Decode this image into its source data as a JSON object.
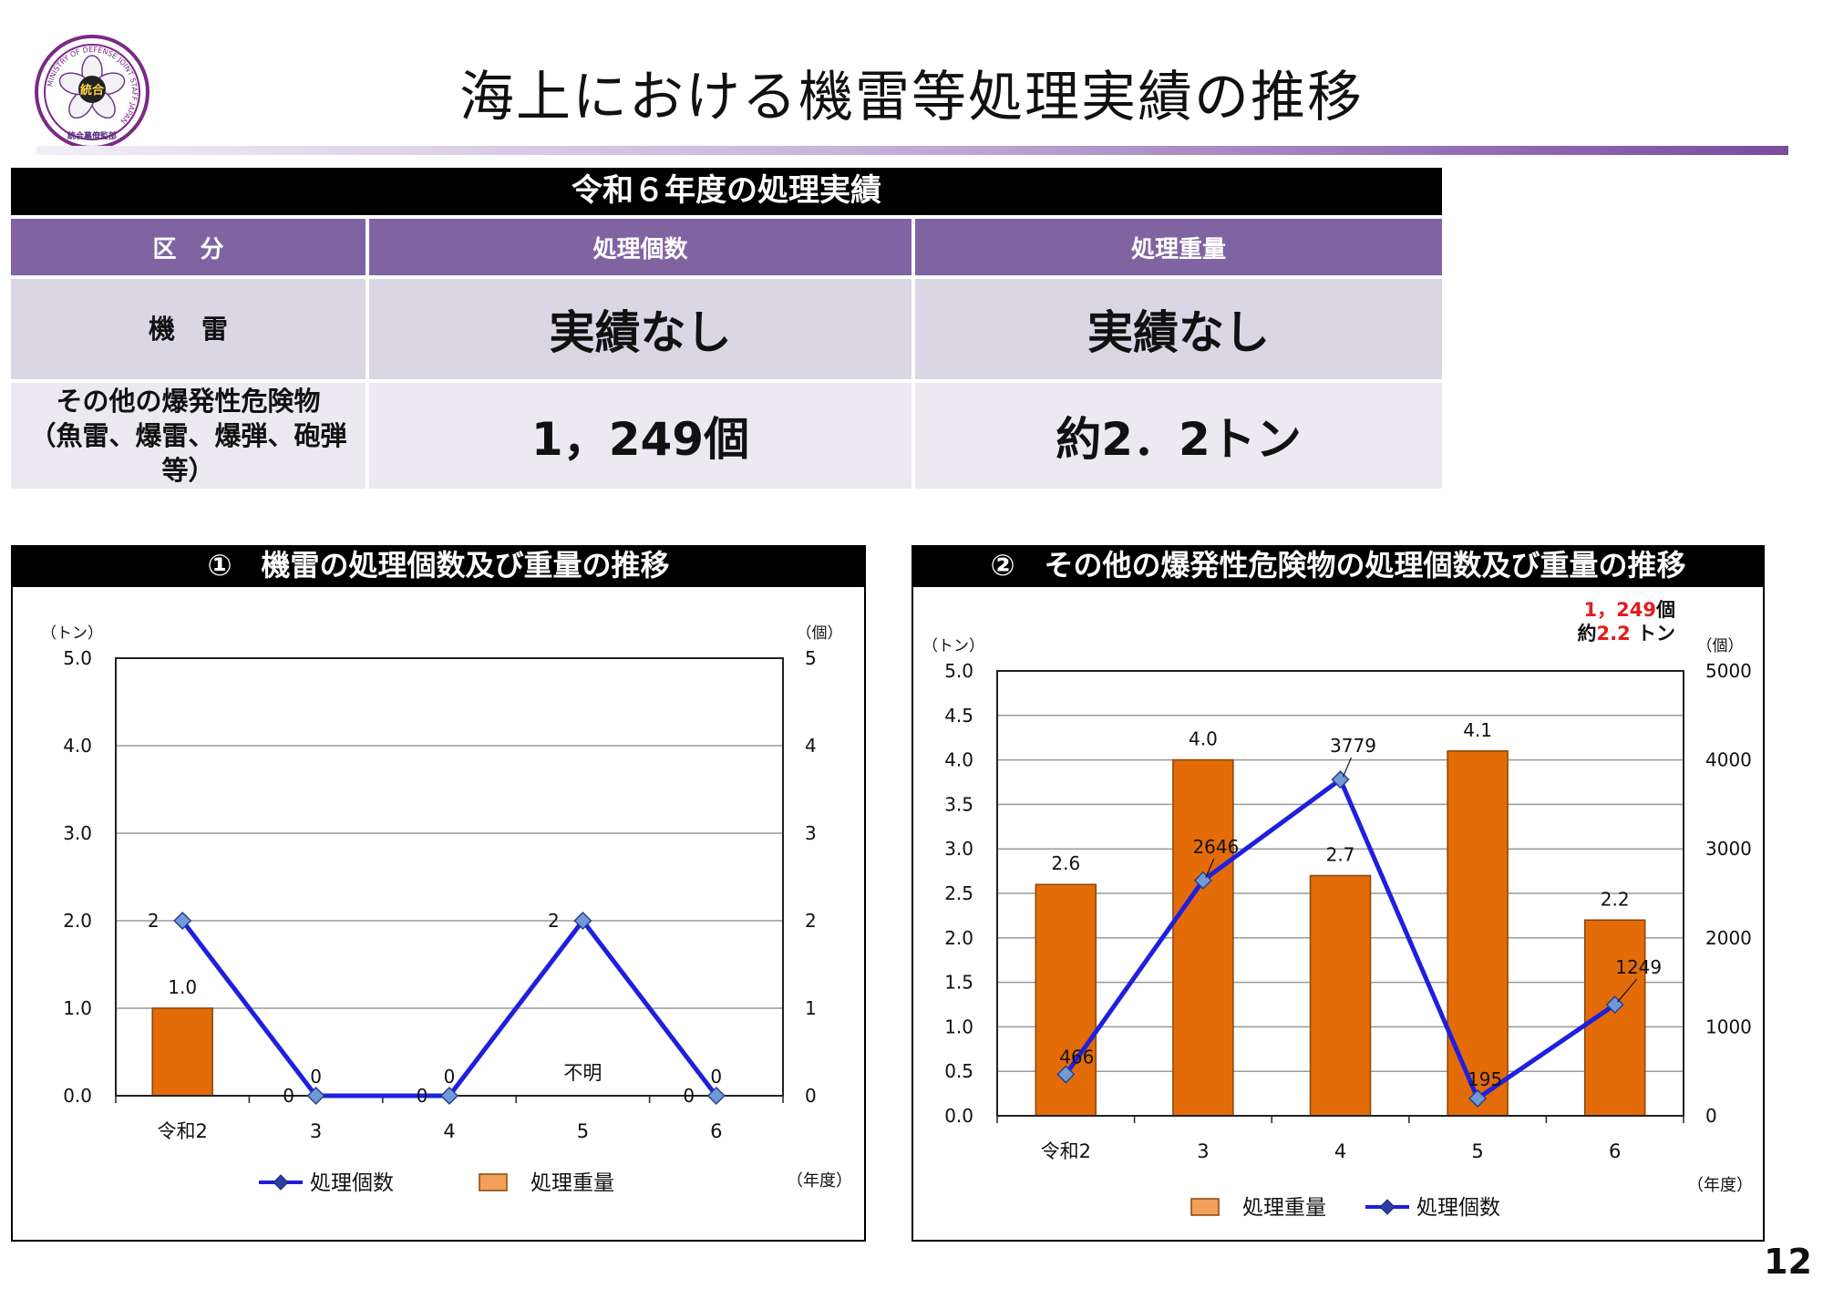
{
  "page": {
    "title": "海上における機雷等処理実績の推移",
    "page_number": "12",
    "logo": {
      "text_ring": "MINISTRY OF DEFENSE JOINT STAFF JAPAN",
      "bottom_text": "統合幕僚監部",
      "center_text": "統合",
      "icon": "joint-staff-emblem-icon"
    }
  },
  "summary": {
    "heading": "令和６年度の処理実績",
    "headers": [
      "区　分",
      "処理個数",
      "処理重量"
    ],
    "rows": [
      {
        "label": "機　雷",
        "label2": "",
        "count": "実績なし",
        "weight": "実績なし"
      },
      {
        "label": "その他の爆発性危険物",
        "label2": "（魚雷、爆雷、爆弾、砲弾等）",
        "count": "1，249個",
        "weight": "約2．2トン"
      }
    ]
  },
  "colors": {
    "bar": "#e36c09",
    "line": "#1f1fdf",
    "marker": "#6f9ad7",
    "header_purple": "#8064a2"
  },
  "chart_data": [
    {
      "type": "bar+line",
      "title": "①　機雷の処理個数及び重量の推移",
      "categories": [
        "令和2",
        "3",
        "4",
        "5",
        "6"
      ],
      "left_axis": {
        "unit": "（トン）",
        "ticks": [
          "0.0",
          "1.0",
          "2.0",
          "3.0",
          "4.0",
          "5.0"
        ],
        "range": [
          0,
          5
        ]
      },
      "right_axis": {
        "unit": "（個）",
        "ticks": [
          "0",
          "1",
          "2",
          "3",
          "4",
          "5"
        ],
        "range": [
          0,
          5
        ]
      },
      "x_unit": "（年度）",
      "series": [
        {
          "name": "処理重量",
          "type": "bar",
          "values": [
            1.0,
            0,
            0,
            null,
            0
          ],
          "labels": [
            "1.0",
            "0",
            "0",
            "不明",
            "0"
          ]
        },
        {
          "name": "処理個数",
          "type": "line",
          "values": [
            2,
            0,
            0,
            2,
            0
          ],
          "labels": [
            "2",
            "0",
            "0",
            "2",
            "0"
          ]
        }
      ],
      "legend": [
        "処理個数",
        "処理重量"
      ],
      "grid": true
    },
    {
      "type": "bar+line",
      "title": "②　その他の爆発性危険物の処理個数及び重量の推移",
      "categories": [
        "令和2",
        "3",
        "4",
        "5",
        "6"
      ],
      "left_axis": {
        "unit": "（トン）",
        "ticks": [
          "0.0",
          "0.5",
          "1.0",
          "1.5",
          "2.0",
          "2.5",
          "3.0",
          "3.5",
          "4.0",
          "4.5",
          "5.0"
        ],
        "range": [
          0,
          5
        ]
      },
      "right_axis": {
        "unit": "（個）",
        "ticks": [
          "0",
          "1000",
          "2000",
          "3000",
          "4000",
          "5000"
        ],
        "range": [
          0,
          5000
        ]
      },
      "x_unit": "（年度）",
      "series": [
        {
          "name": "処理重量",
          "type": "bar",
          "values": [
            2.6,
            4.0,
            2.7,
            4.1,
            2.2
          ],
          "labels": [
            "2.6",
            "4.0",
            "2.7",
            "4.1",
            "2.2"
          ]
        },
        {
          "name": "処理個数",
          "type": "line",
          "values": [
            466,
            2646,
            3779,
            195,
            1249
          ],
          "labels": [
            "466",
            "2646",
            "3779",
            "195",
            "1249"
          ]
        }
      ],
      "annotation": {
        "count_value": "1，249",
        "count_unit": "個",
        "weight_prefix": "約",
        "weight_value": "2.2",
        "weight_unit": " トン"
      },
      "legend": [
        "処理重量",
        "処理個数"
      ],
      "grid": true
    }
  ]
}
